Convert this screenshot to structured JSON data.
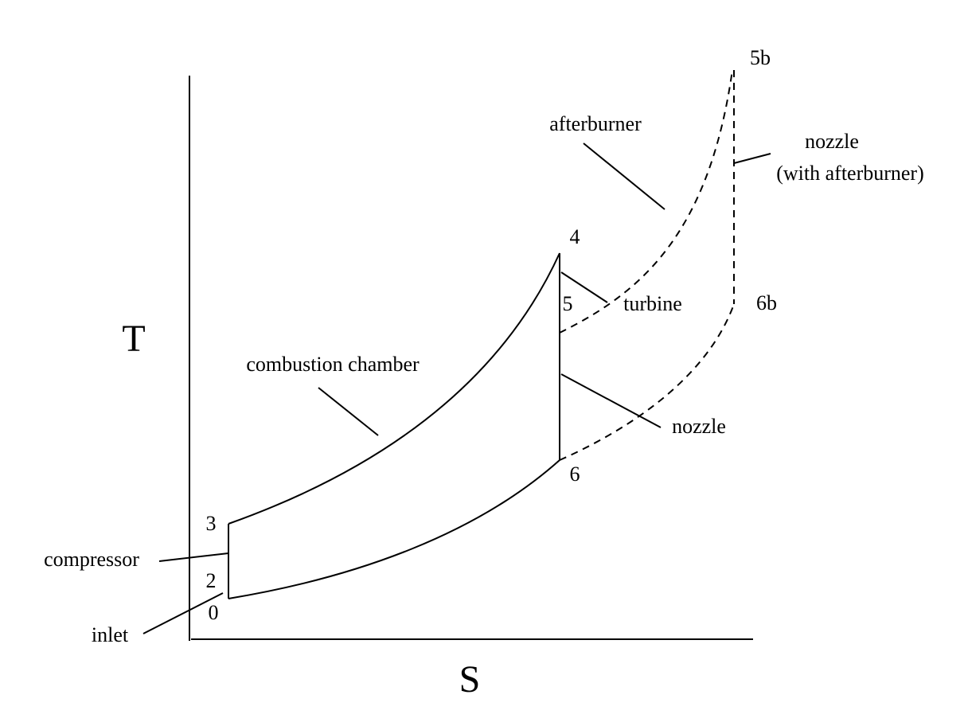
{
  "axes": {
    "y_label": "T",
    "x_label": "S"
  },
  "points": {
    "p0": "0",
    "p2": "2",
    "p3": "3",
    "p4": "4",
    "p5": "5",
    "p6": "6",
    "p5b": "5b",
    "p6b": "6b"
  },
  "annotations": {
    "compressor": "compressor",
    "inlet": "inlet",
    "combustion": "combustion chamber",
    "afterburner": "afterburner",
    "turbine": "turbine",
    "nozzle": "nozzle",
    "nozzle_ab_1": "nozzle",
    "nozzle_ab_2": "(with afterburner)"
  }
}
